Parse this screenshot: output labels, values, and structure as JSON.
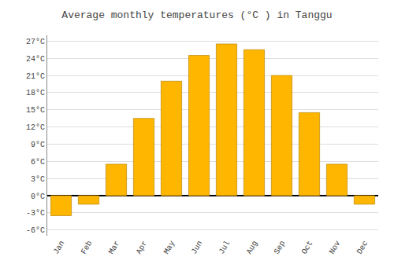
{
  "chart_data": {
    "type": "bar",
    "title": "Average monthly temperatures (°C ) in Tanggu",
    "categories": [
      "Jan",
      "Feb",
      "Mar",
      "Apr",
      "May",
      "Jun",
      "Jul",
      "Aug",
      "Sep",
      "Oct",
      "Nov",
      "Dec"
    ],
    "values": [
      -3.5,
      -1.5,
      5.5,
      13.5,
      20.0,
      24.5,
      26.5,
      25.5,
      21.0,
      14.5,
      5.5,
      -1.5
    ],
    "color": "#FFB600",
    "ylim": [
      -7,
      28
    ],
    "yticks": [
      {
        "value": -6,
        "label": "-6°C"
      },
      {
        "value": -3,
        "label": "-3°C"
      },
      {
        "value": 0,
        "label": "0°C"
      },
      {
        "value": 3,
        "label": "3°C"
      },
      {
        "value": 6,
        "label": "6°C"
      },
      {
        "value": 9,
        "label": "9°C"
      },
      {
        "value": 12,
        "label": "12°C"
      },
      {
        "value": 15,
        "label": "15°C"
      },
      {
        "value": 18,
        "label": "18°C"
      },
      {
        "value": 21,
        "label": "21°C"
      },
      {
        "value": 24,
        "label": "24°C"
      },
      {
        "value": 27,
        "label": "27°C"
      }
    ],
    "grid": true
  }
}
